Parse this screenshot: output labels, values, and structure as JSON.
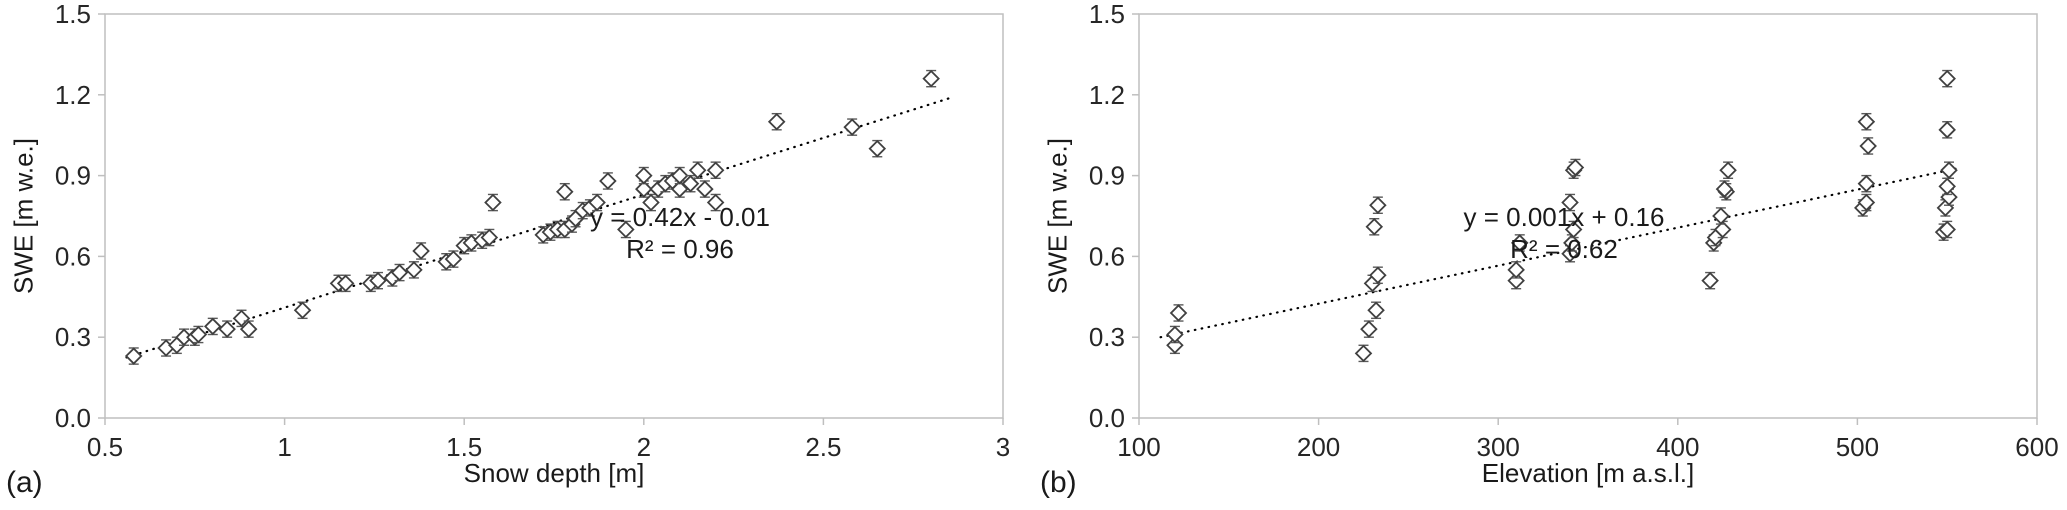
{
  "figure_background": "#ffffff",
  "chart_data": [
    {
      "type": "scatter",
      "panel_label": "(a)",
      "xlabel": "Snow depth [m]",
      "ylabel": "SWE [m w.e.]",
      "xlim": [
        0.5,
        3
      ],
      "ylim": [
        0,
        1.5
      ],
      "xticks": [
        0.5,
        1,
        1.5,
        2,
        2.5,
        3
      ],
      "xtick_labels": [
        "0.5",
        "1",
        "1.5",
        "2",
        "2.5",
        "3"
      ],
      "yticks": [
        0,
        0.3,
        0.6,
        0.9,
        1.2,
        1.5
      ],
      "ytick_labels": [
        "0.0",
        "0.3",
        "0.6",
        "0.9",
        "1.2",
        "1.5"
      ],
      "equation": "y = 0.42x - 0.01",
      "r_squared": "R² = 0.96",
      "trendline": {
        "style": "dotted",
        "x1": 0.56,
        "y1": 0.225,
        "x2": 2.85,
        "y2": 1.187
      },
      "marker": "open-diamond",
      "error_y": 0.03,
      "grid": false,
      "legend": "none",
      "colors": {
        "axis": "#bfbfbf",
        "marker": "#404040",
        "trendline": "#000000",
        "errorbar": "#595959"
      },
      "points": [
        [
          0.58,
          0.23
        ],
        [
          0.67,
          0.26
        ],
        [
          0.7,
          0.27
        ],
        [
          0.72,
          0.3
        ],
        [
          0.75,
          0.3
        ],
        [
          0.76,
          0.31
        ],
        [
          0.8,
          0.34
        ],
        [
          0.84,
          0.33
        ],
        [
          0.88,
          0.37
        ],
        [
          0.9,
          0.33
        ],
        [
          1.05,
          0.4
        ],
        [
          1.15,
          0.5
        ],
        [
          1.17,
          0.5
        ],
        [
          1.24,
          0.5
        ],
        [
          1.26,
          0.51
        ],
        [
          1.3,
          0.52
        ],
        [
          1.32,
          0.54
        ],
        [
          1.36,
          0.55
        ],
        [
          1.38,
          0.62
        ],
        [
          1.45,
          0.58
        ],
        [
          1.47,
          0.59
        ],
        [
          1.5,
          0.64
        ],
        [
          1.52,
          0.65
        ],
        [
          1.55,
          0.66
        ],
        [
          1.57,
          0.67
        ],
        [
          1.58,
          0.8
        ],
        [
          1.72,
          0.68
        ],
        [
          1.74,
          0.69
        ],
        [
          1.76,
          0.7
        ],
        [
          1.78,
          0.7
        ],
        [
          1.78,
          0.84
        ],
        [
          1.8,
          0.72
        ],
        [
          1.81,
          0.74
        ],
        [
          1.83,
          0.77
        ],
        [
          1.85,
          0.78
        ],
        [
          1.87,
          0.8
        ],
        [
          1.9,
          0.88
        ],
        [
          1.95,
          0.7
        ],
        [
          2.0,
          0.85
        ],
        [
          2.0,
          0.9
        ],
        [
          2.02,
          0.8
        ],
        [
          2.04,
          0.85
        ],
        [
          2.06,
          0.87
        ],
        [
          2.08,
          0.88
        ],
        [
          2.1,
          0.85
        ],
        [
          2.1,
          0.9
        ],
        [
          2.13,
          0.87
        ],
        [
          2.15,
          0.92
        ],
        [
          2.17,
          0.85
        ],
        [
          2.2,
          0.8
        ],
        [
          2.2,
          0.92
        ],
        [
          2.37,
          1.1
        ],
        [
          2.58,
          1.08
        ],
        [
          2.65,
          1.0
        ],
        [
          2.8,
          1.26
        ]
      ]
    },
    {
      "type": "scatter",
      "panel_label": "(b)",
      "xlabel": "Elevation [m a.s.l.]",
      "ylabel": "SWE [m w.e.]",
      "xlim": [
        100,
        600
      ],
      "ylim": [
        0,
        1.5
      ],
      "xticks": [
        100,
        200,
        300,
        400,
        500,
        600
      ],
      "xtick_labels": [
        "100",
        "200",
        "300",
        "400",
        "500",
        "600"
      ],
      "yticks": [
        0,
        0.3,
        0.6,
        0.9,
        1.2,
        1.5
      ],
      "ytick_labels": [
        "0.0",
        "0.3",
        "0.6",
        "0.9",
        "1.2",
        "1.5"
      ],
      "equation": "y = 0.001x + 0.16",
      "r_squared": "R² = 0.62",
      "trendline": {
        "style": "dotted",
        "x1": 112,
        "y1": 0.3,
        "x2": 558,
        "y2": 0.93
      },
      "marker": "open-diamond",
      "error_y": 0.03,
      "grid": false,
      "legend": "none",
      "colors": {
        "axis": "#bfbfbf",
        "marker": "#404040",
        "trendline": "#000000",
        "errorbar": "#595959"
      },
      "points": [
        [
          120,
          0.27
        ],
        [
          120,
          0.31
        ],
        [
          122,
          0.39
        ],
        [
          225,
          0.24
        ],
        [
          228,
          0.33
        ],
        [
          232,
          0.4
        ],
        [
          230,
          0.5
        ],
        [
          233,
          0.53
        ],
        [
          231,
          0.71
        ],
        [
          233,
          0.79
        ],
        [
          310,
          0.51
        ],
        [
          310,
          0.55
        ],
        [
          312,
          0.65
        ],
        [
          340,
          0.61
        ],
        [
          341,
          0.65
        ],
        [
          342,
          0.7
        ],
        [
          340,
          0.8
        ],
        [
          342,
          0.92
        ],
        [
          343,
          0.93
        ],
        [
          418,
          0.51
        ],
        [
          420,
          0.65
        ],
        [
          421,
          0.67
        ],
        [
          425,
          0.7
        ],
        [
          424,
          0.75
        ],
        [
          427,
          0.84
        ],
        [
          426,
          0.85
        ],
        [
          428,
          0.92
        ],
        [
          503,
          0.78
        ],
        [
          505,
          0.8
        ],
        [
          505,
          0.87
        ],
        [
          506,
          1.01
        ],
        [
          505,
          1.1
        ],
        [
          548,
          0.69
        ],
        [
          550,
          0.7
        ],
        [
          549,
          0.78
        ],
        [
          551,
          0.82
        ],
        [
          550,
          0.86
        ],
        [
          551,
          0.92
        ],
        [
          550,
          1.07
        ],
        [
          550,
          1.26
        ]
      ]
    }
  ]
}
